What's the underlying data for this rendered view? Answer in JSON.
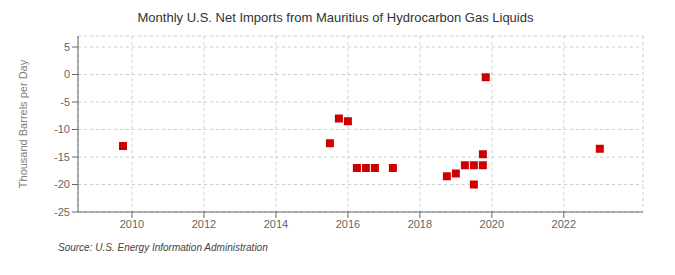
{
  "chart_data": {
    "type": "scatter",
    "title": "Monthly U.S. Net Imports from Mauritius of Hydrocarbon Gas Liquids",
    "ylabel": "Thousand Barrels per Day",
    "source": "Source: U.S. Energy Information Administration",
    "x": [
      2009.75,
      2015.5,
      2015.75,
      2016.0,
      2016.25,
      2016.5,
      2016.75,
      2017.25,
      2018.75,
      2019.0,
      2019.25,
      2019.5,
      2019.5,
      2019.75,
      2019.75,
      2019.83,
      2023.0
    ],
    "values": [
      -13.0,
      -12.5,
      -8.0,
      -8.5,
      -17.0,
      -17.0,
      -17.0,
      -17.0,
      -18.5,
      -18.0,
      -16.5,
      -16.5,
      -20.0,
      -14.5,
      -16.5,
      -0.5,
      -13.5
    ],
    "color": "#cc0000",
    "marker": "square",
    "xlim": [
      2008.5,
      2024.2
    ],
    "ylim": [
      -25,
      7
    ],
    "xticks": [
      2010,
      2012,
      2014,
      2016,
      2018,
      2020,
      2022
    ],
    "yticks": [
      5,
      0,
      -5,
      -10,
      -15,
      -20,
      -25
    ],
    "grid": true
  }
}
